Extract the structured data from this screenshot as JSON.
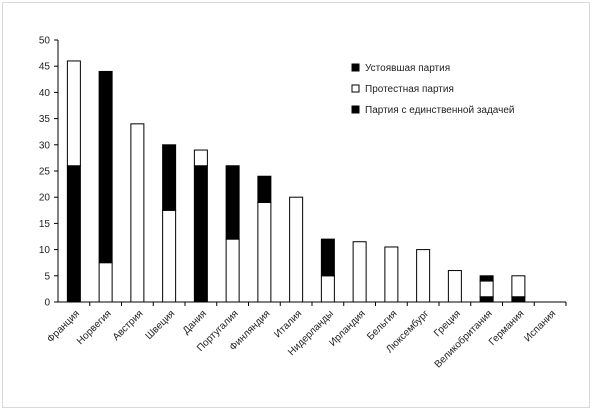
{
  "chart_data": {
    "type": "bar",
    "stacked": true,
    "categories": [
      "Франция",
      "Норвегия",
      "Австрия",
      "Швеция",
      "Дания",
      "Португалия",
      "Финляндия",
      "Италия",
      "Нидерланды",
      "Ирландия",
      "Бельгия",
      "Люксембург",
      "Греция",
      "Великобритания",
      "Германия",
      "Испания"
    ],
    "series": [
      {
        "name": "Партия с единственной задачей",
        "color": "#000000",
        "values": [
          0,
          0,
          0,
          0,
          0,
          0,
          0,
          0,
          0,
          0,
          0,
          0,
          0,
          1,
          1,
          0
        ]
      },
      {
        "name": "Протестная партия",
        "color": "#ffffff",
        "values": [
          0,
          7.5,
          34,
          17.5,
          0,
          12,
          19,
          20,
          5,
          11.5,
          10.5,
          10,
          6,
          3,
          4,
          0
        ]
      },
      {
        "name": "Устоявшая партия",
        "color": "#000000",
        "values": [
          26,
          36.5,
          0,
          12.5,
          26,
          14,
          5,
          0,
          7,
          0,
          0,
          0,
          0,
          1,
          0,
          0
        ]
      },
      {
        "name": "Протестная партия",
        "color": "#ffffff",
        "values": [
          20,
          0,
          0,
          0,
          3,
          0,
          0,
          0,
          0,
          0,
          0,
          0,
          0,
          0,
          0,
          0
        ]
      }
    ],
    "legend": [
      {
        "label": "Устоявшая партия",
        "color": "#000000"
      },
      {
        "label": "Протестная партия",
        "color": "#ffffff"
      },
      {
        "label": "Партия с единственной задачей",
        "color": "#000000"
      }
    ],
    "legend_position": "top-right",
    "yticks": [
      "0",
      "5",
      "10",
      "15",
      "20",
      "25",
      "30",
      "35",
      "40",
      "45",
      "50"
    ],
    "ylim": [
      0,
      50
    ],
    "grid": false,
    "title": "",
    "xlabel": "",
    "ylabel": ""
  }
}
